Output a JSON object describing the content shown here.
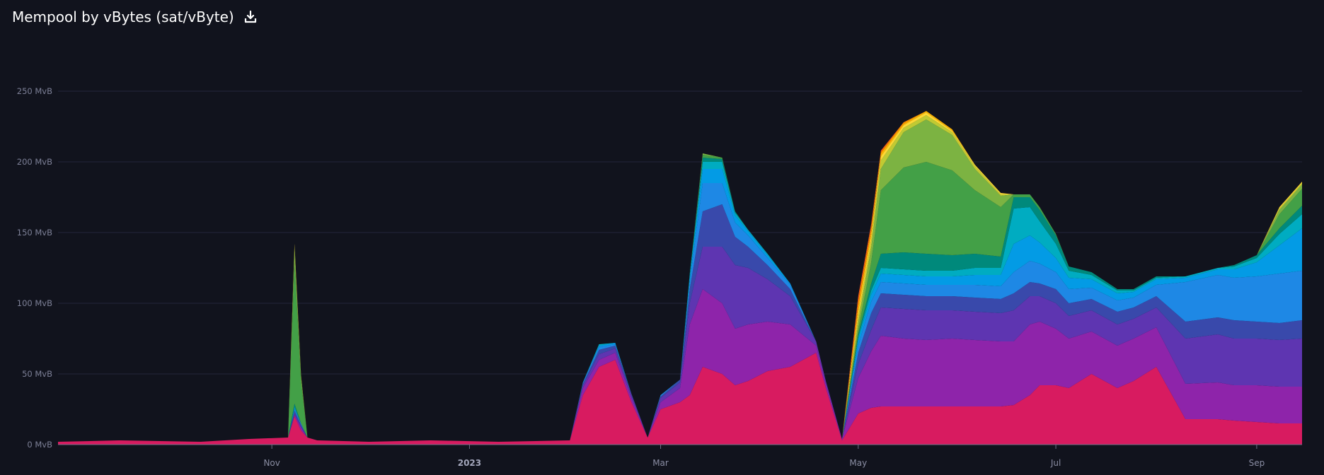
{
  "header": {
    "title": "Mempool by vBytes (sat/vByte)",
    "download_icon": "download-icon"
  },
  "chart_data": {
    "type": "area",
    "title": "Mempool by vBytes (sat/vByte)",
    "xlabel": "",
    "ylabel": "",
    "stacked": true,
    "grid": true,
    "legend": "none",
    "ylim": [
      0,
      250
    ],
    "y_unit": "MvB",
    "y_ticks": [
      {
        "value": 0,
        "label": "0 MvB"
      },
      {
        "value": 50,
        "label": "50 MvB"
      },
      {
        "value": 100,
        "label": "100 MvB"
      },
      {
        "value": 150,
        "label": "150 MvB"
      },
      {
        "value": 200,
        "label": "200 MvB"
      },
      {
        "value": 250,
        "label": "250 MvB"
      }
    ],
    "xlim": [
      "2022-08-27",
      "2023-09-15"
    ],
    "x_ticks": [
      {
        "date": "2022-11-01",
        "label": "Nov",
        "bold": false
      },
      {
        "date": "2023-01-01",
        "label": "2023",
        "bold": true
      },
      {
        "date": "2023-03-01",
        "label": "Mar",
        "bold": false
      },
      {
        "date": "2023-05-01",
        "label": "May",
        "bold": false
      },
      {
        "date": "2023-07-01",
        "label": "Jul",
        "bold": false
      },
      {
        "date": "2023-09-01",
        "label": "Sep",
        "bold": false
      }
    ],
    "series_colors": [
      "#d81b60",
      "#8e24aa",
      "#5e35b1",
      "#3949ab",
      "#1e88e5",
      "#039be5",
      "#00acc1",
      "#00897b",
      "#43a047",
      "#7cb342",
      "#c0ca33",
      "#fdd835",
      "#ffb300",
      "#fb8c00",
      "#f4511e"
    ],
    "x": [
      "2022-08-27",
      "2022-09-15",
      "2022-10-10",
      "2022-10-25",
      "2022-11-06",
      "2022-11-08",
      "2022-11-10",
      "2022-11-12",
      "2022-11-15",
      "2022-12-01",
      "2022-12-20",
      "2023-01-10",
      "2023-02-01",
      "2023-02-05",
      "2023-02-10",
      "2023-02-15",
      "2023-02-20",
      "2023-02-25",
      "2023-03-01",
      "2023-03-07",
      "2023-03-10",
      "2023-03-14",
      "2023-03-20",
      "2023-03-24",
      "2023-03-28",
      "2023-04-03",
      "2023-04-10",
      "2023-04-18",
      "2023-04-21",
      "2023-04-26",
      "2023-05-01",
      "2023-05-05",
      "2023-05-08",
      "2023-05-15",
      "2023-05-22",
      "2023-05-30",
      "2023-06-06",
      "2023-06-14",
      "2023-06-18",
      "2023-06-23",
      "2023-06-26",
      "2023-07-01",
      "2023-07-05",
      "2023-07-12",
      "2023-07-20",
      "2023-07-25",
      "2023-08-01",
      "2023-08-10",
      "2023-08-20",
      "2023-08-25",
      "2023-09-01",
      "2023-09-08",
      "2023-09-15"
    ],
    "series": [
      {
        "values": [
          2,
          3,
          2,
          4,
          5,
          20,
          10,
          5,
          3,
          2,
          3,
          2,
          3,
          35,
          55,
          60,
          30,
          5,
          25,
          30,
          35,
          55,
          50,
          42,
          45,
          52,
          55,
          65,
          40,
          3,
          22,
          26,
          27,
          27,
          27,
          27,
          27,
          27,
          28,
          35,
          42,
          42,
          40,
          50,
          40,
          45,
          55,
          18,
          18,
          17,
          16,
          15,
          15
        ]
      },
      {
        "values": [
          0,
          0,
          0,
          0,
          0,
          1,
          2,
          0,
          0,
          0,
          0,
          0,
          0,
          5,
          5,
          5,
          3,
          0,
          5,
          10,
          50,
          55,
          50,
          40,
          40,
          35,
          30,
          5,
          3,
          1,
          25,
          40,
          50,
          48,
          47,
          48,
          47,
          46,
          45,
          50,
          45,
          40,
          35,
          30,
          30,
          30,
          28,
          25,
          26,
          25,
          26,
          26,
          26
        ]
      },
      {
        "values": [
          0,
          0,
          0,
          0,
          0,
          1,
          1,
          0,
          0,
          0,
          0,
          0,
          0,
          2,
          4,
          3,
          2,
          0,
          3,
          4,
          15,
          30,
          40,
          45,
          40,
          30,
          20,
          3,
          2,
          0,
          10,
          15,
          20,
          21,
          21,
          20,
          20,
          20,
          22,
          20,
          18,
          18,
          16,
          15,
          15,
          14,
          14,
          32,
          34,
          33,
          33,
          33,
          34
        ]
      },
      {
        "values": [
          0,
          0,
          0,
          0,
          0,
          2,
          1,
          0,
          0,
          0,
          0,
          0,
          0,
          1,
          3,
          2,
          1,
          0,
          1,
          2,
          10,
          25,
          30,
          20,
          15,
          10,
          5,
          0,
          0,
          0,
          8,
          12,
          10,
          10,
          10,
          10,
          10,
          10,
          12,
          10,
          9,
          10,
          9,
          8,
          9,
          8,
          8,
          12,
          12,
          13,
          12,
          12,
          13
        ]
      },
      {
        "values": [
          0,
          0,
          0,
          0,
          0,
          1,
          1,
          0,
          0,
          0,
          0,
          0,
          0,
          1,
          2,
          1,
          0,
          0,
          1,
          0,
          5,
          20,
          15,
          10,
          8,
          5,
          3,
          0,
          0,
          0,
          5,
          8,
          8,
          8,
          8,
          8,
          9,
          9,
          15,
          15,
          14,
          12,
          10,
          8,
          8,
          7,
          8,
          28,
          30,
          30,
          32,
          35,
          35
        ]
      },
      {
        "values": [
          0,
          0,
          0,
          0,
          0,
          1,
          0,
          0,
          0,
          0,
          0,
          0,
          0,
          0,
          1,
          1,
          0,
          0,
          0,
          0,
          3,
          10,
          10,
          5,
          3,
          2,
          1,
          0,
          0,
          0,
          4,
          5,
          6,
          6,
          6,
          6,
          7,
          8,
          20,
          18,
          15,
          10,
          8,
          6,
          5,
          4,
          4,
          3,
          4,
          6,
          10,
          20,
          30
        ]
      },
      {
        "values": [
          0,
          0,
          0,
          0,
          0,
          1,
          0,
          0,
          0,
          0,
          0,
          0,
          0,
          0,
          1,
          0,
          0,
          0,
          0,
          0,
          2,
          5,
          5,
          2,
          1,
          1,
          0,
          0,
          0,
          0,
          2,
          3,
          4,
          4,
          4,
          4,
          5,
          5,
          25,
          20,
          15,
          10,
          5,
          3,
          2,
          1,
          1,
          1,
          1,
          2,
          3,
          8,
          10
        ]
      },
      {
        "values": [
          0,
          0,
          0,
          0,
          0,
          2,
          0,
          0,
          0,
          0,
          0,
          0,
          0,
          0,
          0,
          0,
          0,
          0,
          0,
          0,
          1,
          3,
          2,
          1,
          0,
          0,
          0,
          0,
          0,
          0,
          2,
          5,
          10,
          12,
          12,
          11,
          10,
          8,
          8,
          7,
          8,
          6,
          3,
          2,
          1,
          1,
          1,
          0,
          0,
          1,
          2,
          4,
          6
        ]
      },
      {
        "values": [
          0,
          0,
          0,
          0,
          0,
          100,
          30,
          0,
          0,
          0,
          0,
          0,
          0,
          0,
          0,
          0,
          0,
          0,
          0,
          0,
          0,
          2,
          1,
          0,
          0,
          0,
          0,
          0,
          0,
          0,
          3,
          15,
          45,
          60,
          65,
          60,
          45,
          35,
          2,
          2,
          2,
          1,
          0,
          0,
          0,
          0,
          0,
          0,
          0,
          0,
          0,
          10,
          12
        ]
      },
      {
        "values": [
          0,
          0,
          0,
          0,
          0,
          10,
          3,
          0,
          0,
          0,
          0,
          0,
          0,
          0,
          0,
          0,
          0,
          0,
          0,
          0,
          0,
          1,
          0,
          0,
          0,
          0,
          0,
          0,
          0,
          0,
          5,
          10,
          15,
          25,
          30,
          25,
          15,
          8,
          0,
          0,
          0,
          0,
          0,
          0,
          0,
          0,
          0,
          0,
          0,
          0,
          0,
          3,
          3
        ]
      },
      {
        "values": [
          0,
          0,
          0,
          0,
          0,
          2,
          1,
          0,
          0,
          0,
          0,
          0,
          0,
          0,
          0,
          0,
          0,
          0,
          0,
          0,
          0,
          0,
          0,
          0,
          0,
          0,
          0,
          0,
          0,
          0,
          4,
          5,
          6,
          3,
          3,
          2,
          2,
          1,
          0,
          0,
          0,
          0,
          0,
          0,
          0,
          0,
          0,
          0,
          0,
          0,
          0,
          1,
          1
        ]
      },
      {
        "values": [
          0,
          0,
          0,
          0,
          0,
          1,
          0,
          0,
          0,
          0,
          0,
          0,
          0,
          0,
          0,
          0,
          0,
          0,
          0,
          0,
          0,
          0,
          0,
          0,
          0,
          0,
          0,
          0,
          0,
          0,
          4,
          4,
          3,
          2,
          2,
          1,
          1,
          1,
          0,
          0,
          0,
          0,
          0,
          0,
          0,
          0,
          0,
          0,
          0,
          0,
          0,
          1,
          1
        ]
      },
      {
        "values": [
          0,
          0,
          0,
          0,
          0,
          0,
          0,
          0,
          0,
          0,
          0,
          0,
          0,
          0,
          0,
          0,
          0,
          0,
          0,
          0,
          0,
          0,
          0,
          0,
          0,
          0,
          0,
          0,
          0,
          0,
          4,
          3,
          2,
          1,
          1,
          1,
          0,
          0,
          0,
          0,
          0,
          0,
          0,
          0,
          0,
          0,
          0,
          0,
          0,
          0,
          0,
          0,
          0
        ]
      },
      {
        "values": [
          0,
          0,
          0,
          0,
          0,
          0,
          0,
          0,
          0,
          0,
          0,
          0,
          0,
          0,
          0,
          0,
          0,
          0,
          0,
          0,
          0,
          0,
          0,
          0,
          0,
          0,
          0,
          0,
          0,
          0,
          4,
          3,
          1,
          1,
          0,
          0,
          0,
          0,
          0,
          0,
          0,
          0,
          0,
          0,
          0,
          0,
          0,
          0,
          0,
          0,
          0,
          0,
          0
        ]
      },
      {
        "values": [
          0,
          0,
          0,
          0,
          0,
          0,
          0,
          0,
          0,
          0,
          0,
          0,
          0,
          0,
          0,
          0,
          0,
          0,
          0,
          0,
          0,
          0,
          0,
          0,
          0,
          0,
          0,
          0,
          0,
          0,
          3,
          2,
          1,
          0,
          0,
          0,
          0,
          0,
          0,
          0,
          0,
          0,
          0,
          0,
          0,
          0,
          0,
          0,
          0,
          0,
          0,
          0,
          0
        ]
      }
    ]
  }
}
